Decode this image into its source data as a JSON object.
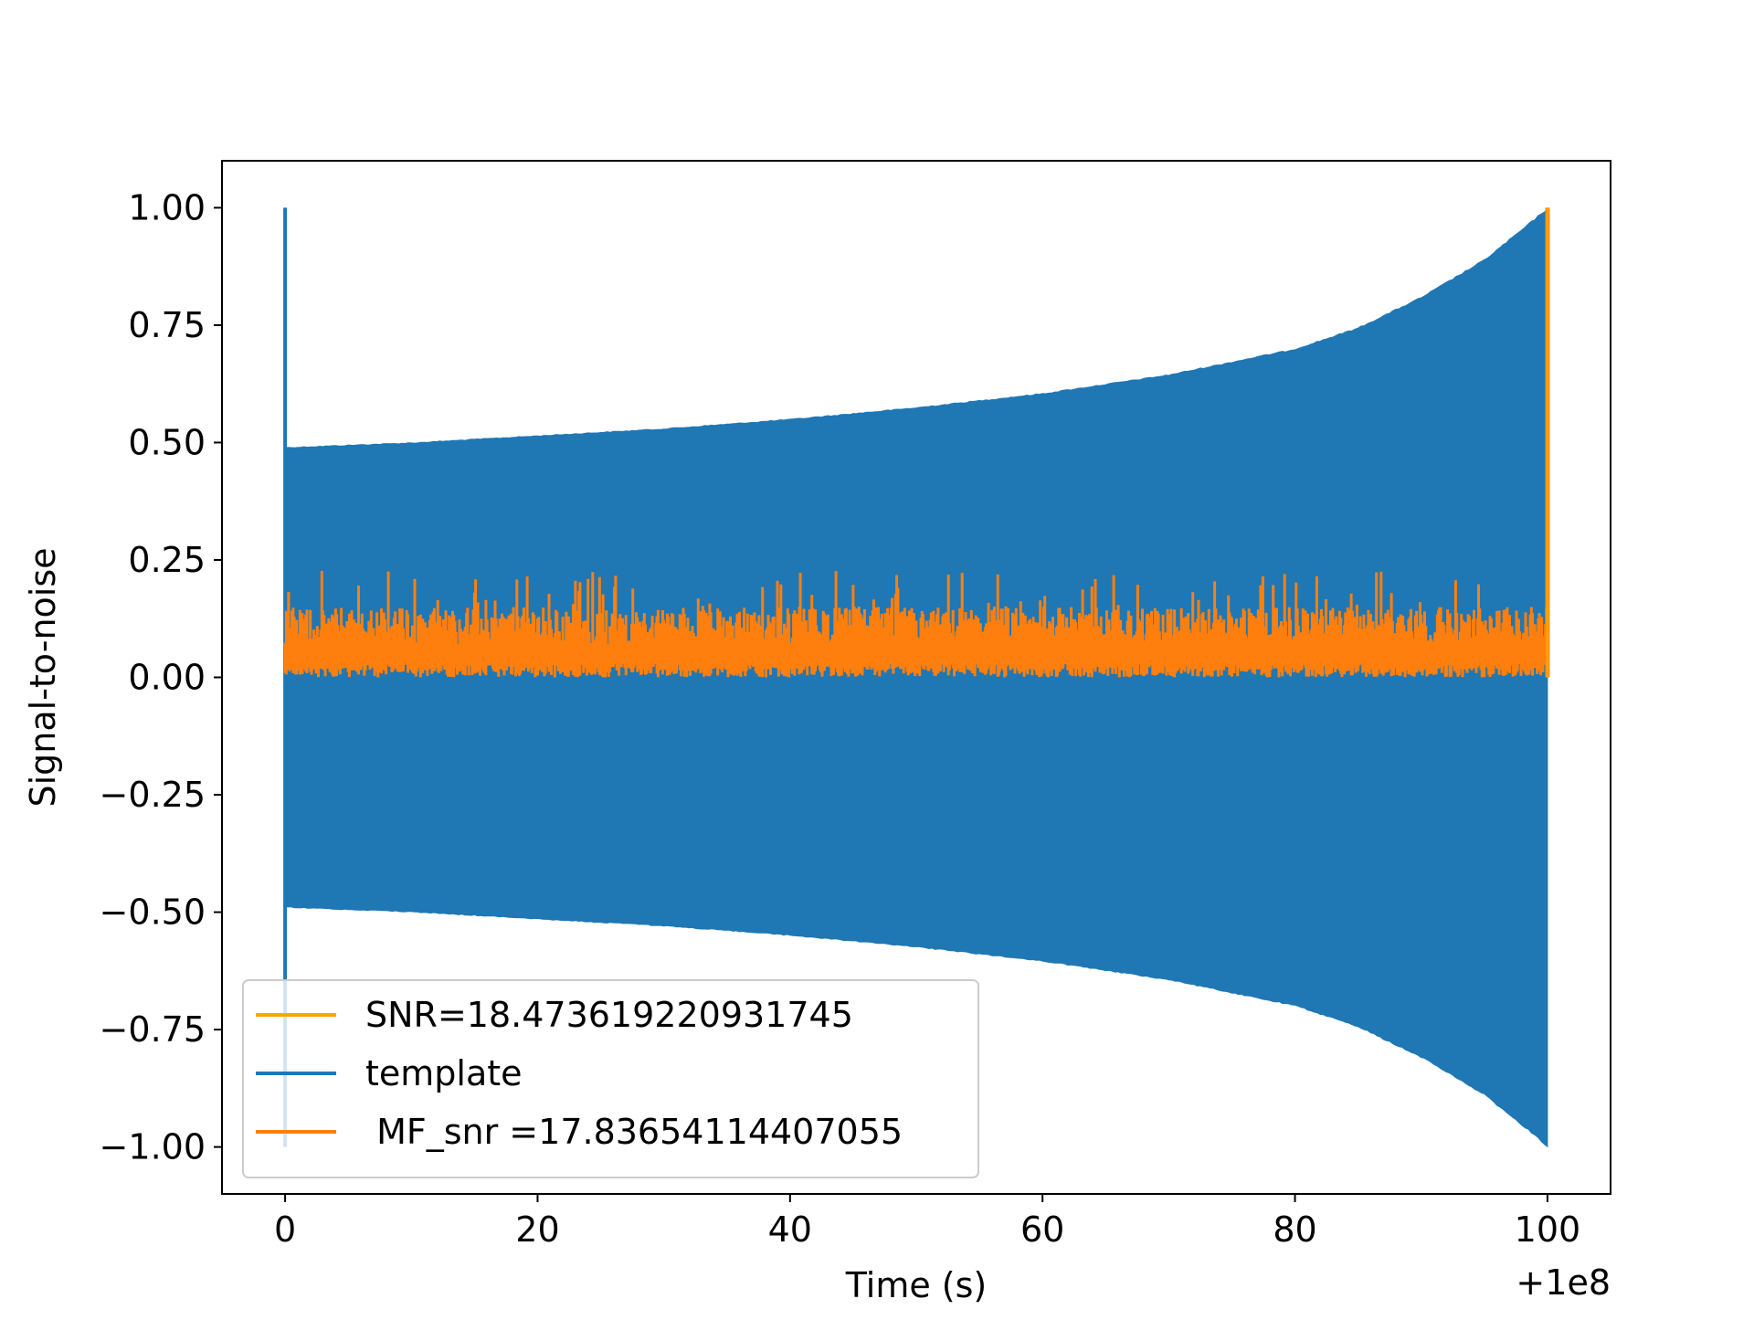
{
  "chart_data": {
    "type": "line",
    "title": "",
    "xlabel": "Time (s)",
    "ylabel": "Signal-to-noise",
    "x_offset_label": "+1e8",
    "xlim": [
      -5,
      105
    ],
    "ylim": [
      -1.1,
      1.1
    ],
    "x_ticks": [
      0,
      20,
      40,
      60,
      80,
      100
    ],
    "x_tick_labels": [
      "0",
      "20",
      "40",
      "60",
      "80",
      "100"
    ],
    "y_ticks": [
      1.0,
      0.75,
      0.5,
      0.25,
      0.0,
      -0.25,
      -0.5,
      -0.75,
      -1.0
    ],
    "y_tick_labels": [
      "1.00",
      "0.75",
      "0.50",
      "0.25",
      "0.00",
      "−0.25",
      "−0.50",
      "−0.75",
      "−1.00"
    ],
    "grid": false,
    "legend_position": "lower-left",
    "series": [
      {
        "name": "SNR=18.473619220931745",
        "color": "#ffa500",
        "style": "spike",
        "points": [
          [
            100.0,
            0.0
          ],
          [
            100.0,
            1.0
          ]
        ]
      },
      {
        "name": "template",
        "color": "#1f77b4",
        "style": "chirp-envelope",
        "start_spike": {
          "x": 0.0,
          "ymin": -1.0,
          "ymax": 1.0
        },
        "envelope": [
          [
            0,
            0.49
          ],
          [
            10,
            0.5
          ],
          [
            20,
            0.515
          ],
          [
            30,
            0.53
          ],
          [
            40,
            0.55
          ],
          [
            50,
            0.575
          ],
          [
            60,
            0.605
          ],
          [
            70,
            0.645
          ],
          [
            80,
            0.7
          ],
          [
            85,
            0.745
          ],
          [
            90,
            0.81
          ],
          [
            95,
            0.89
          ],
          [
            98,
            0.955
          ],
          [
            100,
            1.0
          ]
        ]
      },
      {
        "name": " MF_snr =17.83654114407055",
        "color": "#ff7f0e",
        "style": "noise-band",
        "band": {
          "x_start": 0.0,
          "x_end": 100.0,
          "ymin": 0.0,
          "ymax": 0.23,
          "typical_top": 0.15
        },
        "end_spike": {
          "x": 100.0,
          "ymin": 0.0,
          "ymax": 1.0
        }
      }
    ]
  }
}
